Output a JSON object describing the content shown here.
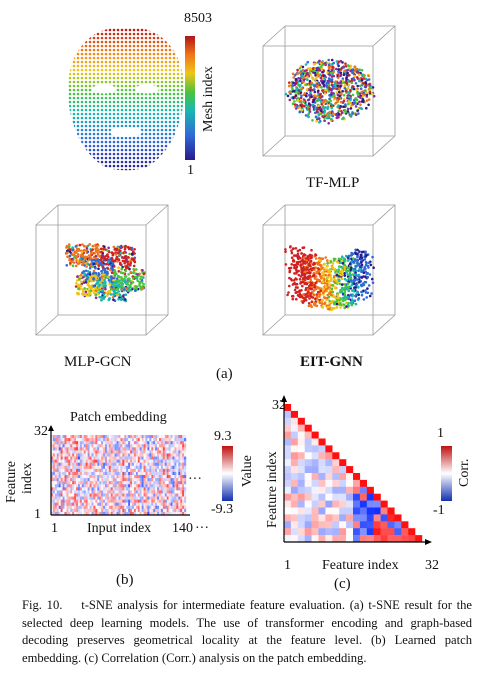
{
  "panel_a": {
    "face": {
      "colorbar_max": "8503",
      "colorbar_min": "1",
      "colorbar_label": "Mesh index"
    },
    "plots": [
      {
        "name": "TF-MLP",
        "bold": false
      },
      {
        "name": "MLP-GCN",
        "bold": false
      },
      {
        "name": "EIT-GNN",
        "bold": true
      }
    ],
    "sublabel": "(a)"
  },
  "panel_b": {
    "title": "Patch embedding",
    "ylabel_line1": "Feature",
    "ylabel_line2": "index",
    "y_top": "32",
    "y_bottom": "1",
    "x_left": "1",
    "xlabel": "Input index",
    "x_right": "140",
    "ellipsis": "···",
    "colorbar_max": "9.3",
    "colorbar_min": "-9.3",
    "colorbar_label": "Value",
    "sublabel": "(b)"
  },
  "panel_c": {
    "y_top": "32",
    "ylabel": "Feature index",
    "xlabel": "Feature index",
    "x_left": "1",
    "x_right": "32",
    "colorbar_max": "1",
    "colorbar_min": "-1",
    "colorbar_label": "Corr.",
    "sublabel": "(c)"
  },
  "caption": {
    "lead": "Fig. 10.",
    "text": "t-SNE analysis for intermediate feature evaluation. (a) t-SNE result for the selected deep learning models. The use of transformer encoding and graph-based decoding preserves geometrical locality at the feature level. (b) Learned patch embedding. (c) Correlation (Corr.) analysis on the patch embedding."
  }
}
